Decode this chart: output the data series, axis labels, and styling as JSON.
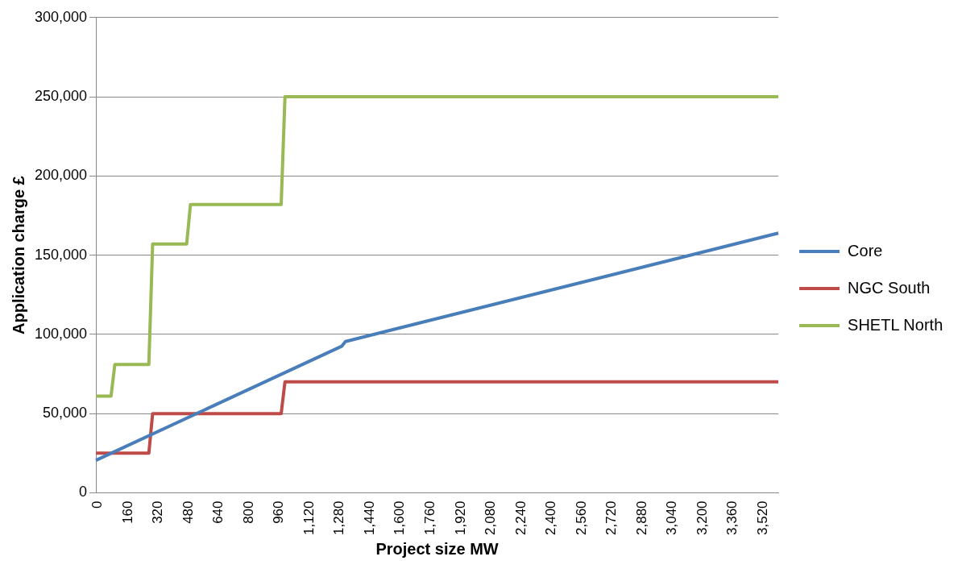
{
  "chart_data": {
    "type": "line",
    "xlabel": "Project size MW",
    "ylabel": "Application charge £",
    "xlim": [
      0,
      3610
    ],
    "ylim": [
      0,
      300000
    ],
    "xticks": [
      0,
      160,
      320,
      480,
      640,
      800,
      960,
      {
        "value": 1120,
        "label": "1,120"
      },
      {
        "value": 1280,
        "label": "1,280"
      },
      {
        "value": 1440,
        "label": "1,440"
      },
      {
        "value": 1600,
        "label": "1,600"
      },
      {
        "value": 1760,
        "label": "1,760"
      },
      {
        "value": 1920,
        "label": "1,920"
      },
      {
        "value": 2080,
        "label": "2,080"
      },
      {
        "value": 2240,
        "label": "2,240"
      },
      {
        "value": 2400,
        "label": "2,400"
      },
      {
        "value": 2560,
        "label": "2,560"
      },
      {
        "value": 2720,
        "label": "2,720"
      },
      {
        "value": 2880,
        "label": "2,880"
      },
      {
        "value": 3040,
        "label": "3,040"
      },
      {
        "value": 3200,
        "label": "3,200"
      },
      {
        "value": 3360,
        "label": "3,360"
      },
      {
        "value": 3520,
        "label": "3,520"
      }
    ],
    "yticks": [
      0,
      {
        "value": 50000,
        "label": "50,000"
      },
      {
        "value": 100000,
        "label": "100,000"
      },
      {
        "value": 150000,
        "label": "150,000"
      },
      {
        "value": 200000,
        "label": "200,000"
      },
      {
        "value": 250000,
        "label": "250,000"
      },
      {
        "value": 300000,
        "label": "300,000"
      }
    ],
    "grid": "y",
    "legend": "right",
    "marker": "none",
    "series": [
      {
        "name": "Core",
        "type": "line",
        "color": "#4a7ebb",
        "x": [
          0,
          1300,
          1320,
          3610
        ],
        "values": [
          20500,
          92500,
          95500,
          163900
        ]
      },
      {
        "name": "NGC South",
        "type": "line",
        "color": "#be4b48",
        "x": [
          0,
          280,
          300,
          980,
          1000,
          3610
        ],
        "values": [
          25000,
          25000,
          50000,
          50000,
          70000,
          70000
        ]
      },
      {
        "name": "SHETL North",
        "type": "line",
        "color": "#98b954",
        "x": [
          0,
          80,
          100,
          280,
          300,
          480,
          500,
          980,
          1000,
          3610
        ],
        "values": [
          61000,
          61000,
          81000,
          81000,
          157000,
          157000,
          182000,
          182000,
          250000,
          250000
        ]
      }
    ]
  }
}
